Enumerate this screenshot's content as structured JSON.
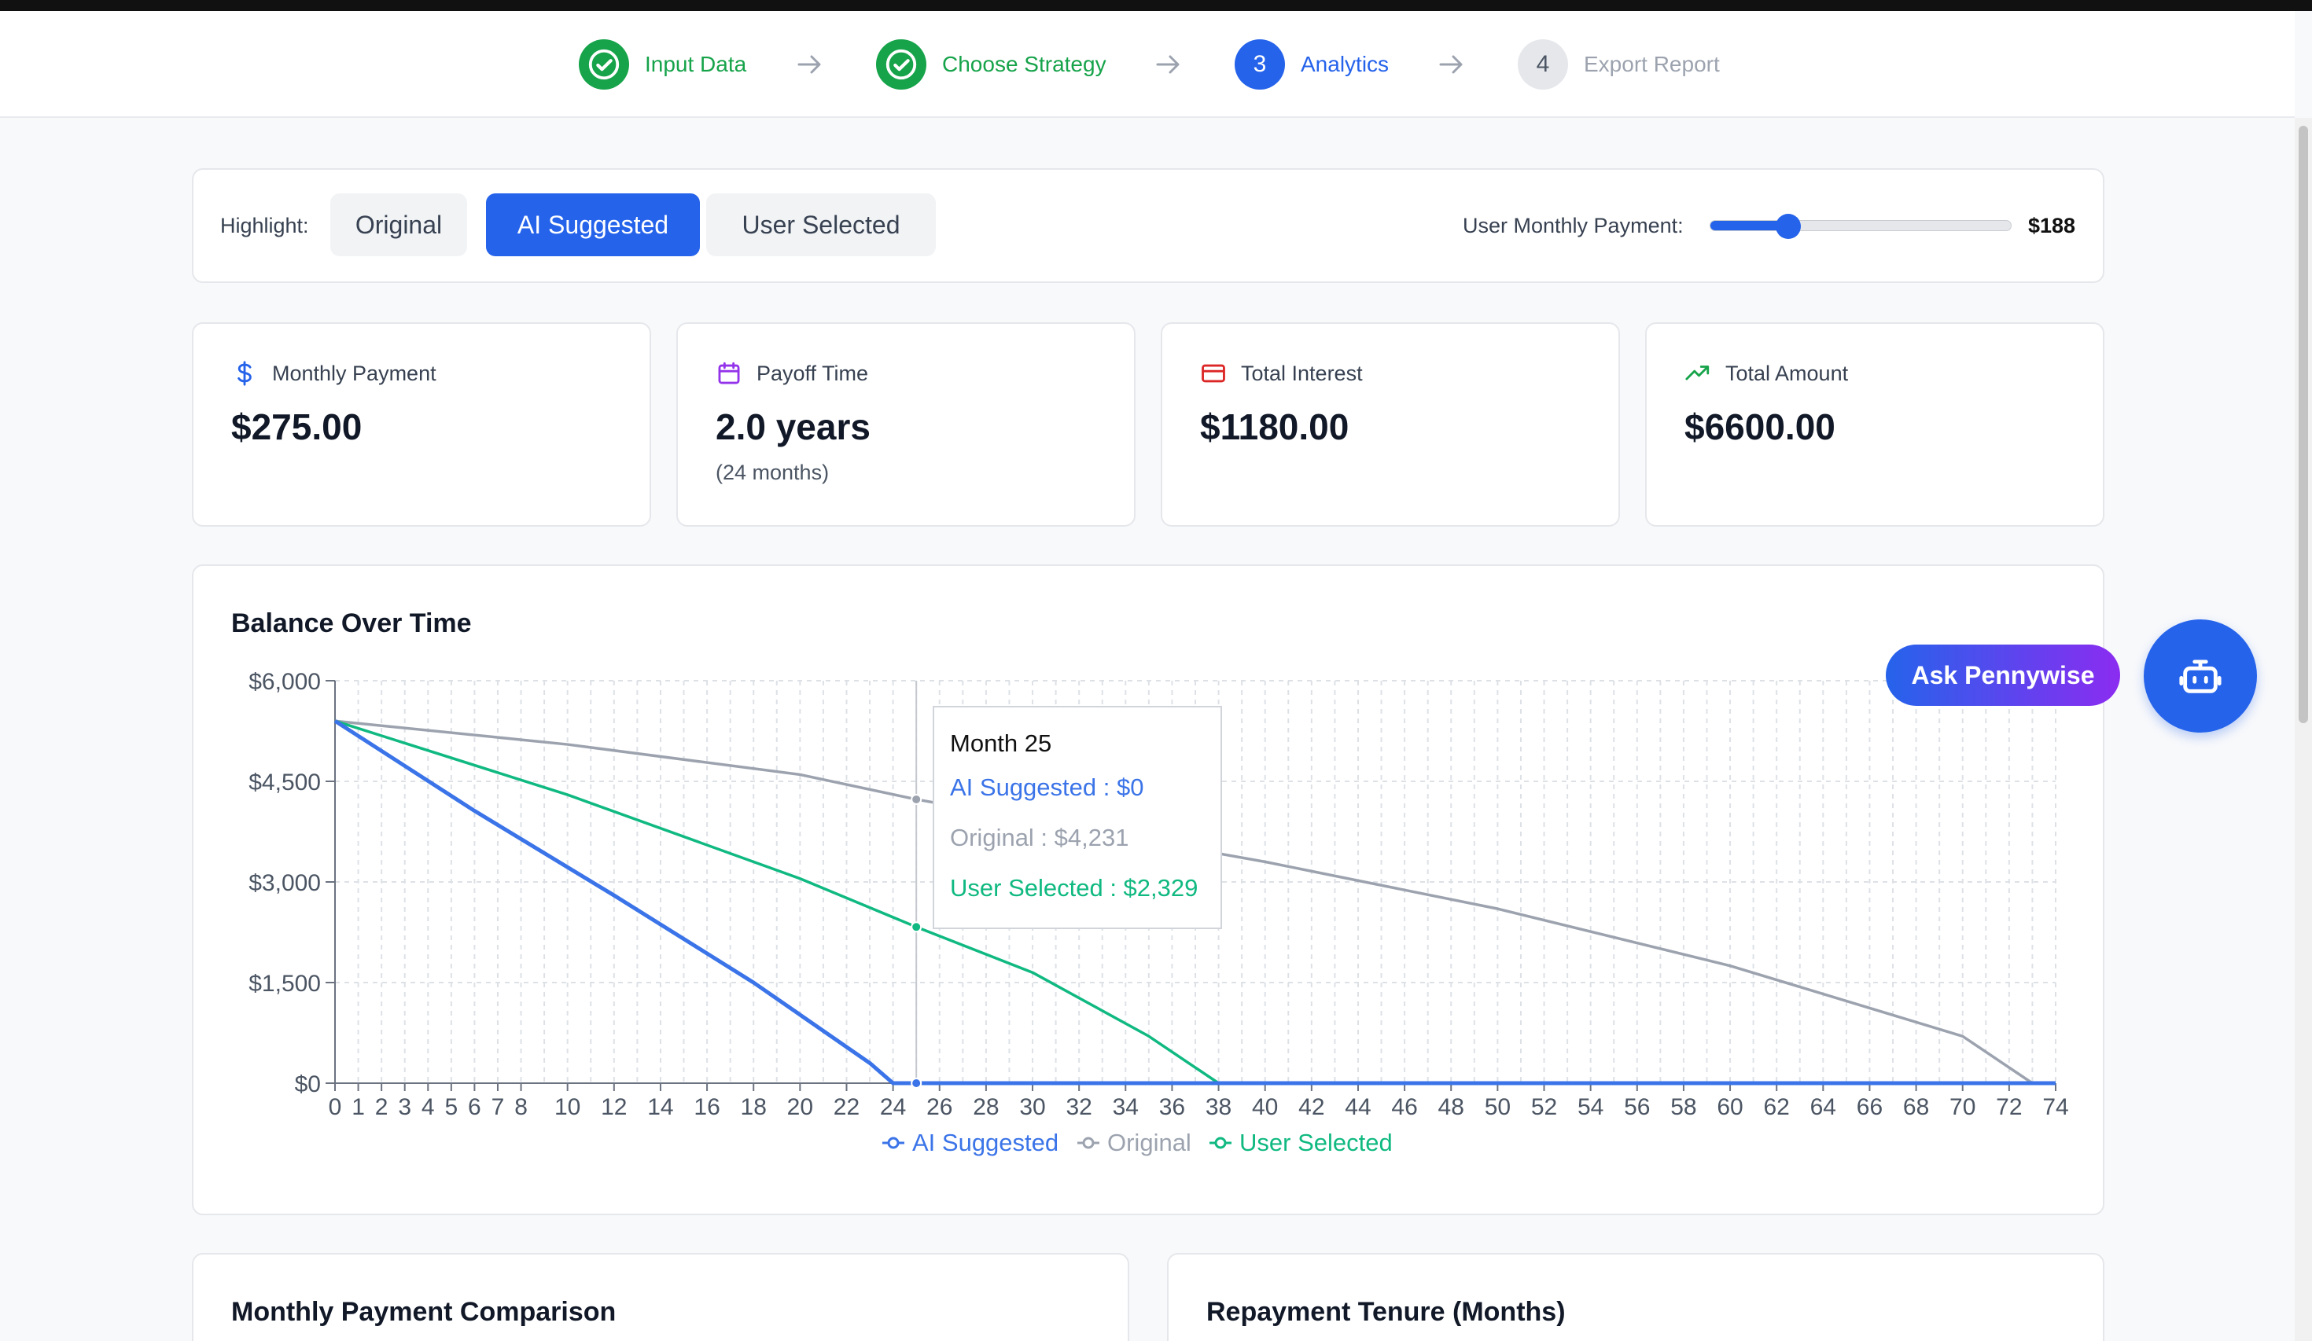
{
  "stepper": {
    "steps": [
      {
        "label": "Input Data",
        "status": "done",
        "icon": "check-circle-icon"
      },
      {
        "label": "Choose Strategy",
        "status": "done",
        "icon": "check-circle-icon"
      },
      {
        "label": "Analytics",
        "status": "active",
        "number": "3"
      },
      {
        "label": "Export Report",
        "status": "todo",
        "number": "4"
      }
    ]
  },
  "highlight": {
    "label": "Highlight:",
    "options": [
      "Original",
      "AI Suggested",
      "User Selected"
    ],
    "selected": "AI Suggested"
  },
  "user_payment": {
    "label": "User Monthly Payment:",
    "value": "$188",
    "slider_fraction": 0.26
  },
  "stats": [
    {
      "title": "Monthly Payment",
      "value": "$275.00",
      "icon": "dollar-icon",
      "color": "#2563eb"
    },
    {
      "title": "Payoff Time",
      "value": "2.0 years",
      "sub": "(24 months)",
      "icon": "calendar-icon",
      "color": "#9333ea"
    },
    {
      "title": "Total Interest",
      "value": "$1180.00",
      "icon": "credit-card-icon",
      "color": "#dc2626"
    },
    {
      "title": "Total Amount",
      "value": "$6600.00",
      "icon": "trending-up-icon",
      "color": "#16a34a"
    }
  ],
  "chart_data": {
    "type": "line",
    "title": "Balance Over Time",
    "xlim": [
      0,
      74
    ],
    "ylim": [
      0,
      6000
    ],
    "y_ticks": [
      0,
      1500,
      3000,
      4500,
      6000
    ],
    "y_tick_labels": [
      "$0",
      "$1,500",
      "$3,000",
      "$4,500",
      "$6,000"
    ],
    "x_tick_labels": [
      "0",
      "1",
      "2",
      "3",
      "4",
      "5",
      "6",
      "7",
      "8",
      "10",
      "12",
      "14",
      "16",
      "18",
      "20",
      "22",
      "24",
      "26",
      "28",
      "30",
      "32",
      "34",
      "36",
      "38",
      "40",
      "42",
      "44",
      "46",
      "48",
      "50",
      "52",
      "54",
      "56",
      "58",
      "60",
      "62",
      "64",
      "66",
      "68",
      "70",
      "72",
      "74"
    ],
    "grid": true,
    "legend_position": "bottom",
    "series": [
      {
        "name": "AI Suggested",
        "color": "#3b74e8",
        "points": [
          [
            0,
            5400
          ],
          [
            6,
            4060
          ],
          [
            12,
            2800
          ],
          [
            18,
            1500
          ],
          [
            23,
            300
          ],
          [
            24,
            0
          ],
          [
            74,
            0
          ]
        ]
      },
      {
        "name": "Original",
        "color": "#9ca3af",
        "points": [
          [
            0,
            5400
          ],
          [
            10,
            5050
          ],
          [
            20,
            4600
          ],
          [
            25,
            4231
          ],
          [
            30,
            3920
          ],
          [
            40,
            3300
          ],
          [
            50,
            2600
          ],
          [
            60,
            1750
          ],
          [
            70,
            700
          ],
          [
            73,
            0
          ],
          [
            74,
            0
          ]
        ]
      },
      {
        "name": "User Selected",
        "color": "#10b981",
        "points": [
          [
            0,
            5400
          ],
          [
            10,
            4300
          ],
          [
            20,
            3050
          ],
          [
            25,
            2329
          ],
          [
            30,
            1650
          ],
          [
            35,
            700
          ],
          [
            38,
            0
          ],
          [
            74,
            0
          ]
        ]
      }
    ],
    "hover_month": 25,
    "tooltip": {
      "title": "Month 25",
      "rows": [
        {
          "text": "AI Suggested : $0",
          "color": "#3b74e8"
        },
        {
          "text": "Original : $4,231",
          "color": "#9ca3af"
        },
        {
          "text": "User Selected : $2,329",
          "color": "#10b981"
        }
      ]
    }
  },
  "assistant": {
    "ask_label": "Ask Pennywise",
    "bot_icon": "robot-icon"
  },
  "lower_cards": {
    "left_title": "Monthly Payment Comparison",
    "right_title": "Repayment Tenure (Months)"
  }
}
